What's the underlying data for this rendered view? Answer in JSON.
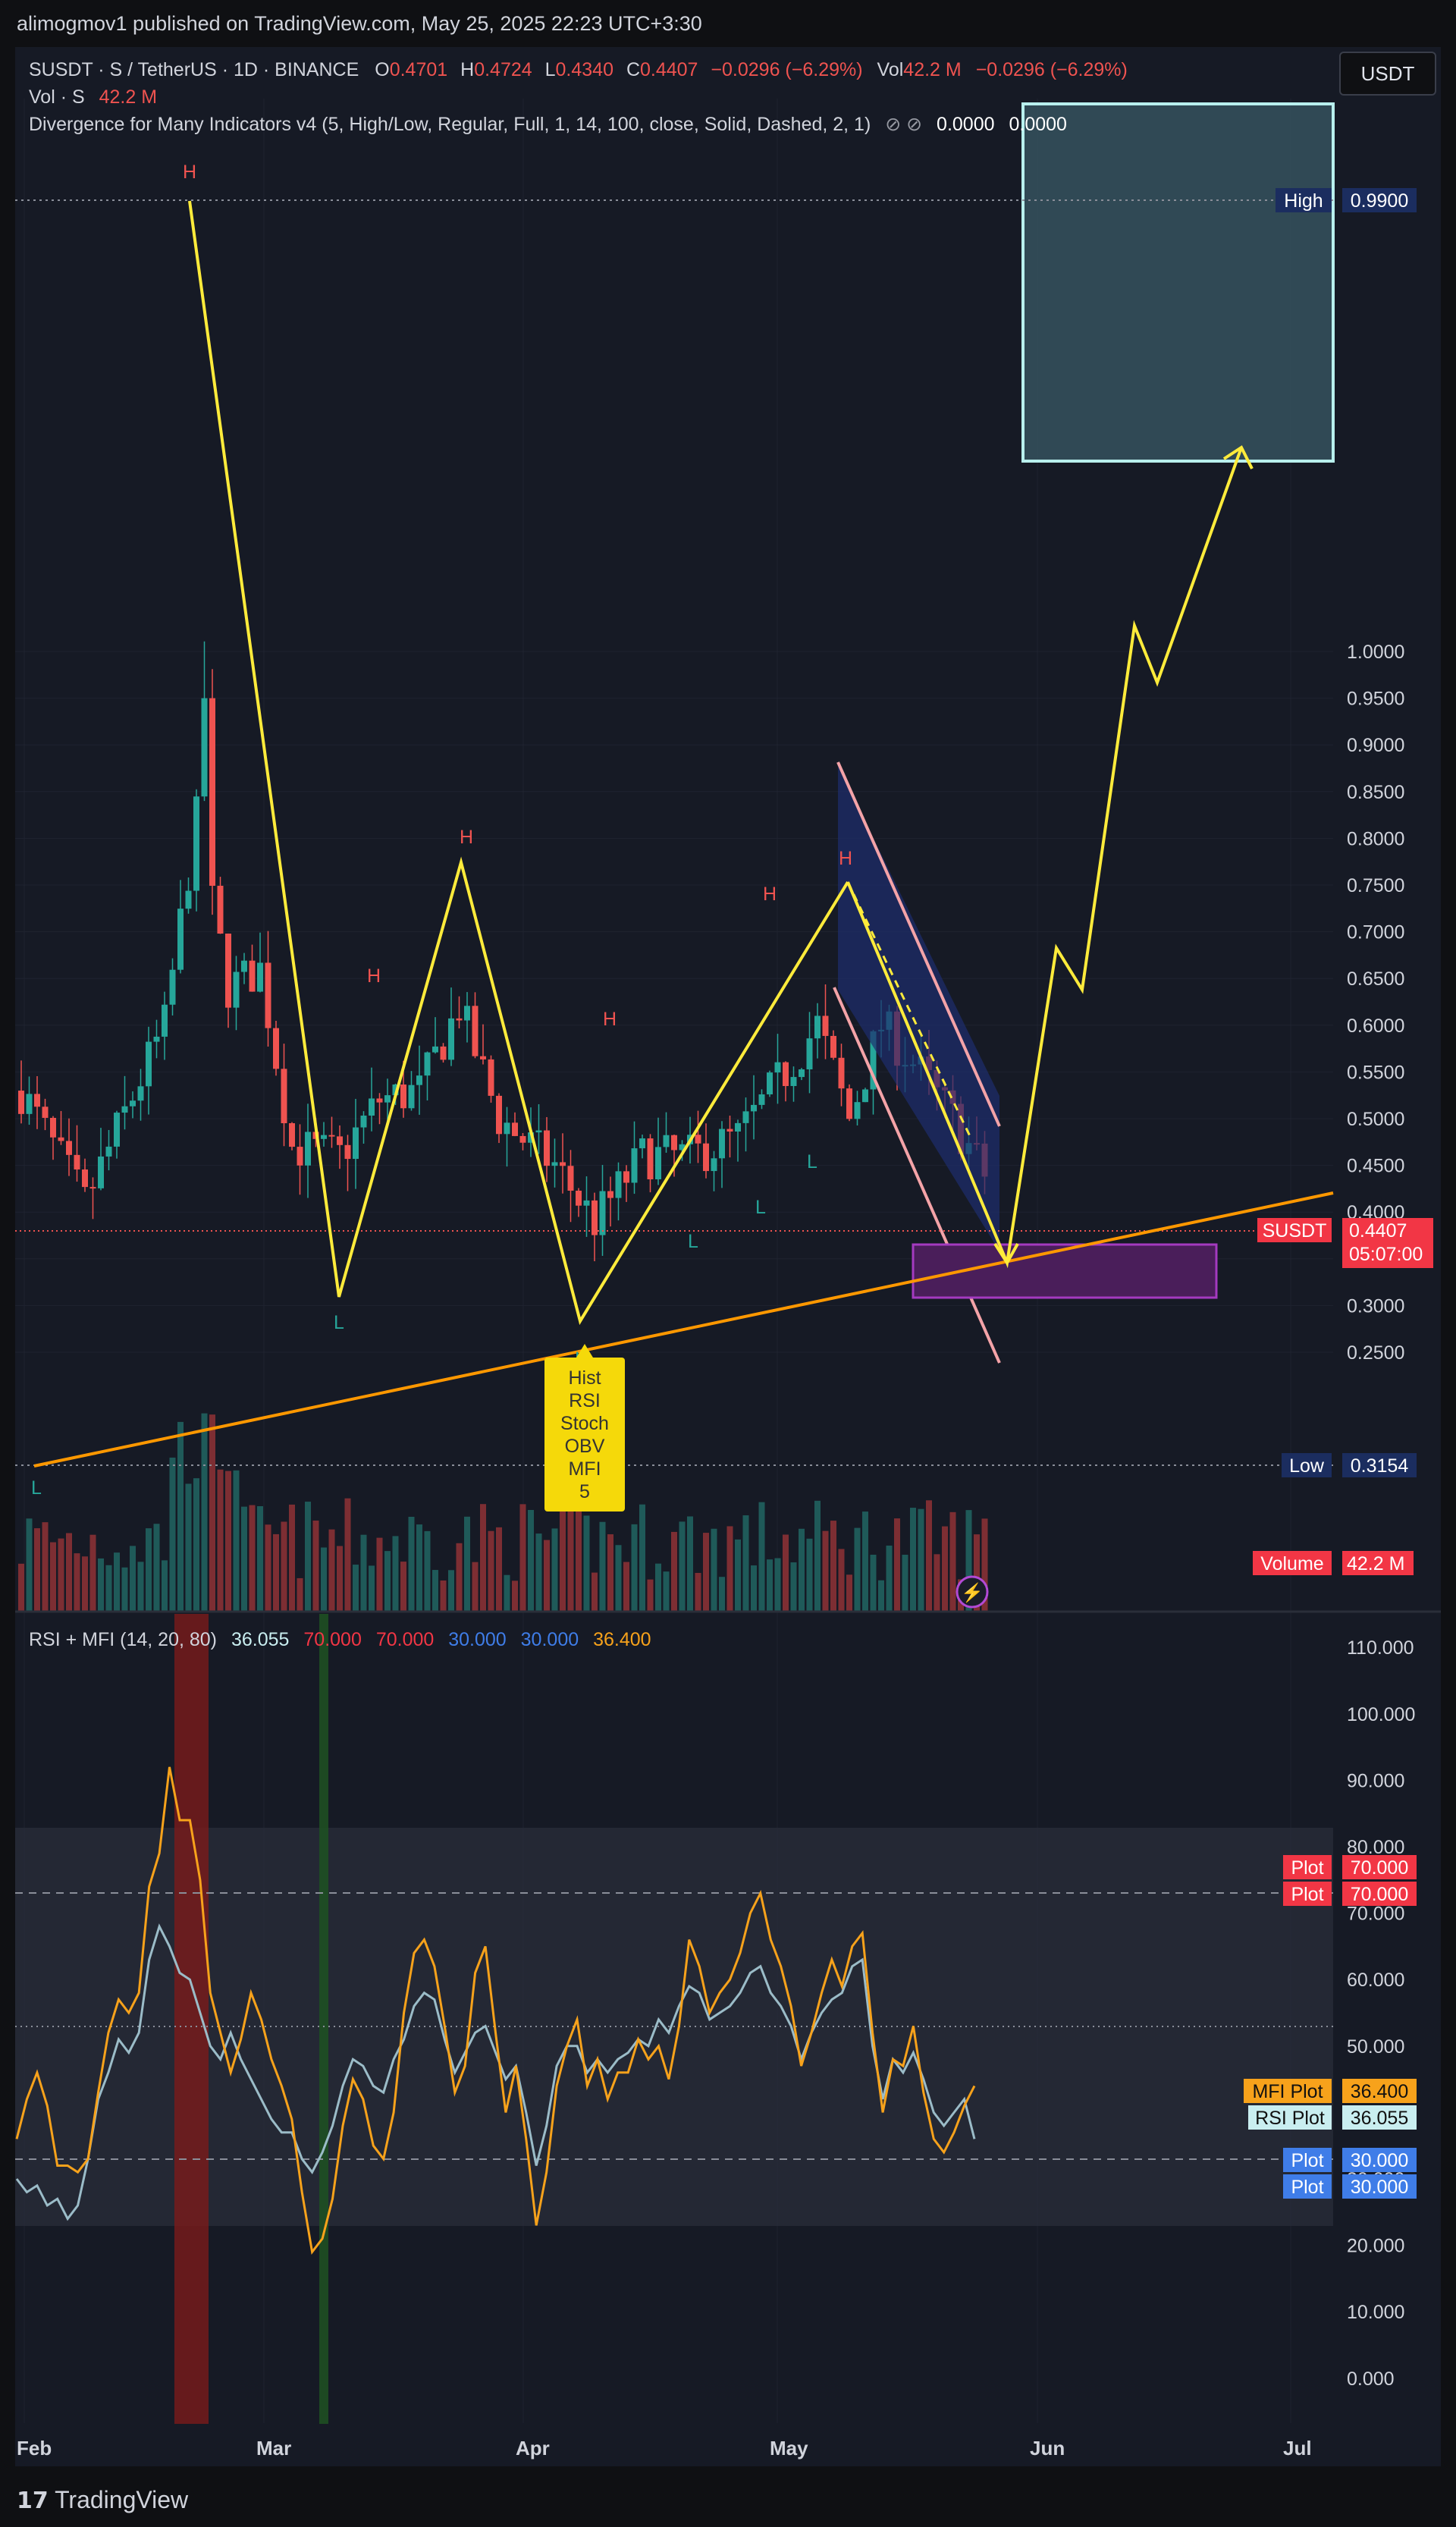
{
  "header": {
    "publisher": "alimogmov1 published on TradingView.com, May 25, 2025 22:23 UTC+3:30"
  },
  "legend": {
    "symbol_desc": "SUSDT · S / TetherUS · 1D · BINANCE",
    "o_label": "O",
    "o_value": "0.4701",
    "h_label": "H",
    "h_value": "0.4724",
    "l_label": "L",
    "l_value": "0.4340",
    "c_label": "C",
    "c_value": "0.4407",
    "change": "−0.0296 (−6.29%)",
    "vol_label": "Vol",
    "vol_value": "42.2 M",
    "vol_change": "−0.0296 (−6.29%)",
    "vol_line_label": "Vol · S",
    "vol_line_value": "42.2 M",
    "divergence": "Divergence for Many Indicators v4 (5, High/Low, Regular, Full, 1, 14, 100, close, Solid, Dashed, 2, 1)",
    "div_val1": "0.0000",
    "div_val2": "0.0000",
    "rsi_label": "RSI + MFI (14, 20, 80)",
    "rsi_v1": "36.055",
    "rsi_v2": "70.000",
    "rsi_v3": "70.000",
    "rsi_v4": "30.000",
    "rsi_v5": "30.000",
    "rsi_v6": "36.400"
  },
  "currency_button": "USDT",
  "colors": {
    "up": "#26a69a",
    "down": "#ef5350",
    "yellow": "#ffeb3b",
    "orange": "#ff9800",
    "rsi": "#9bbcc8",
    "mfi": "#f7a21b",
    "target_box": "#a8e6e6",
    "channel": "#1e2d6e",
    "purple": "#9c27b0"
  },
  "price_axis": {
    "ticks": [
      "1.0000",
      "0.9500",
      "0.9000",
      "0.8500",
      "0.8000",
      "0.7500",
      "0.7000",
      "0.6500",
      "0.6000",
      "0.5500",
      "0.5000",
      "0.4500",
      "0.4000",
      "0.3500",
      "0.3000",
      "0.2500"
    ],
    "high_label": "High",
    "high_value": "0.9900",
    "low_label": "Low",
    "low_value": "0.3154",
    "last_symbol": "SUSDT",
    "last_price": "0.4407",
    "countdown": "05:07:00",
    "volume_label": "Volume",
    "volume_value": "42.2 M"
  },
  "rsi_axis": {
    "ticks": [
      "110.000",
      "100.000",
      "90.000",
      "80.000",
      "70.000",
      "60.000",
      "50.000",
      "40.000",
      "30.000",
      "20.000",
      "10.000",
      "0.000"
    ],
    "plot_label": "Plot",
    "plot_70": "70.000",
    "plot_30": "30.000",
    "mfi_label": "MFI Plot",
    "mfi_value": "36.400",
    "rsi_label": "RSI Plot",
    "rsi_value": "36.055"
  },
  "time_axis": [
    "Feb",
    "Mar",
    "Apr",
    "May",
    "Jun",
    "Jul"
  ],
  "annotations": {
    "pivot_h": "H",
    "pivot_l": "L",
    "divergence_box": [
      "Hist",
      "RSI",
      "Stoch",
      "OBV",
      "MFI",
      "5"
    ]
  },
  "footer": {
    "brand": "TradingView"
  },
  "chart_data": {
    "type": "candlestick",
    "symbol": "SUSDT",
    "exchange": "BINANCE",
    "timeframe": "1D",
    "ylim": [
      0.25,
      1.0
    ],
    "pivots": {
      "highs": [
        0.99,
        0.555,
        0.64,
        0.535,
        0.61,
        0.63
      ],
      "lows": [
        0.405,
        0.44,
        0.46,
        0.395,
        0.48,
        0.355
      ]
    },
    "projection": [
      0.425,
      0.59,
      0.57,
      0.76,
      0.73,
      0.855
    ],
    "target_zone": [
      0.855,
      1.04
    ],
    "support_zone": [
      0.405,
      0.435
    ],
    "rsi_mfi": {
      "rsi_last": 36.055,
      "mfi_last": 36.4,
      "bands": [
        20,
        80
      ],
      "levels": [
        70,
        50,
        30
      ]
    }
  }
}
